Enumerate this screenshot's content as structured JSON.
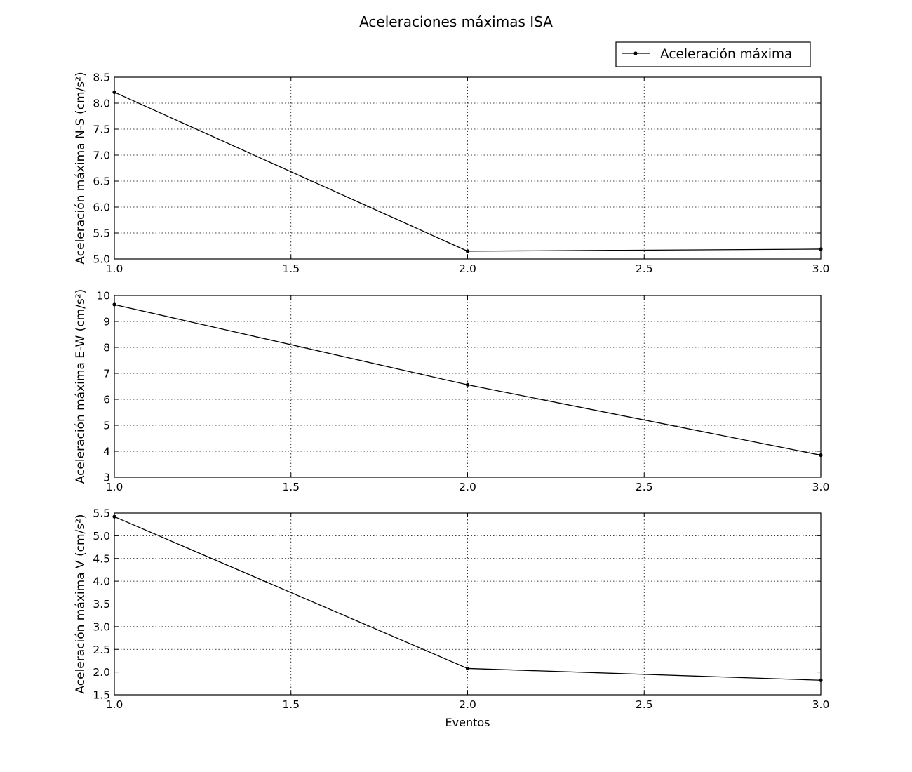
{
  "figure": {
    "title": "Aceleraciones máximas ISA"
  },
  "legend": {
    "label": "Aceleración máxima",
    "placement": "top-right"
  },
  "colors": {
    "line": "#000000",
    "grid": "#000000",
    "background": "#ffffff"
  },
  "chart_data": [
    {
      "type": "line",
      "title": "",
      "xlabel": "",
      "ylabel": "Aceleración máxima N-S (cm/s²)",
      "x": [
        1.0,
        2.0,
        3.0
      ],
      "series": [
        {
          "name": "Aceleración máxima",
          "values": [
            8.21,
            5.15,
            5.19
          ]
        }
      ],
      "xlim": [
        1.0,
        3.0
      ],
      "ylim": [
        5.0,
        8.5
      ],
      "xticks": [
        "1.0",
        "1.5",
        "2.0",
        "2.5",
        "3.0"
      ],
      "yticks": [
        "5.0",
        "5.5",
        "6.0",
        "6.5",
        "7.0",
        "7.5",
        "8.0",
        "8.5"
      ],
      "grid": true
    },
    {
      "type": "line",
      "title": "",
      "xlabel": "",
      "ylabel": "Aceleración máxima E-W (cm/s²)",
      "x": [
        1.0,
        2.0,
        3.0
      ],
      "series": [
        {
          "name": "Aceleración máxima",
          "values": [
            9.65,
            6.56,
            3.85
          ]
        }
      ],
      "xlim": [
        1.0,
        3.0
      ],
      "ylim": [
        3,
        10
      ],
      "xticks": [
        "1.0",
        "1.5",
        "2.0",
        "2.5",
        "3.0"
      ],
      "yticks": [
        "3",
        "4",
        "5",
        "6",
        "7",
        "8",
        "9",
        "10"
      ],
      "grid": true
    },
    {
      "type": "line",
      "title": "",
      "xlabel": "Eventos",
      "ylabel": "Aceleración máxima V (cm/s²)",
      "x": [
        1.0,
        2.0,
        3.0
      ],
      "series": [
        {
          "name": "Aceleración máxima",
          "values": [
            5.42,
            2.08,
            1.82
          ]
        }
      ],
      "xlim": [
        1.0,
        3.0
      ],
      "ylim": [
        1.5,
        5.5
      ],
      "xticks": [
        "1.0",
        "1.5",
        "2.0",
        "2.5",
        "3.0"
      ],
      "yticks": [
        "1.5",
        "2.0",
        "2.5",
        "3.0",
        "3.5",
        "4.0",
        "4.5",
        "5.0",
        "5.5"
      ],
      "grid": true
    }
  ]
}
